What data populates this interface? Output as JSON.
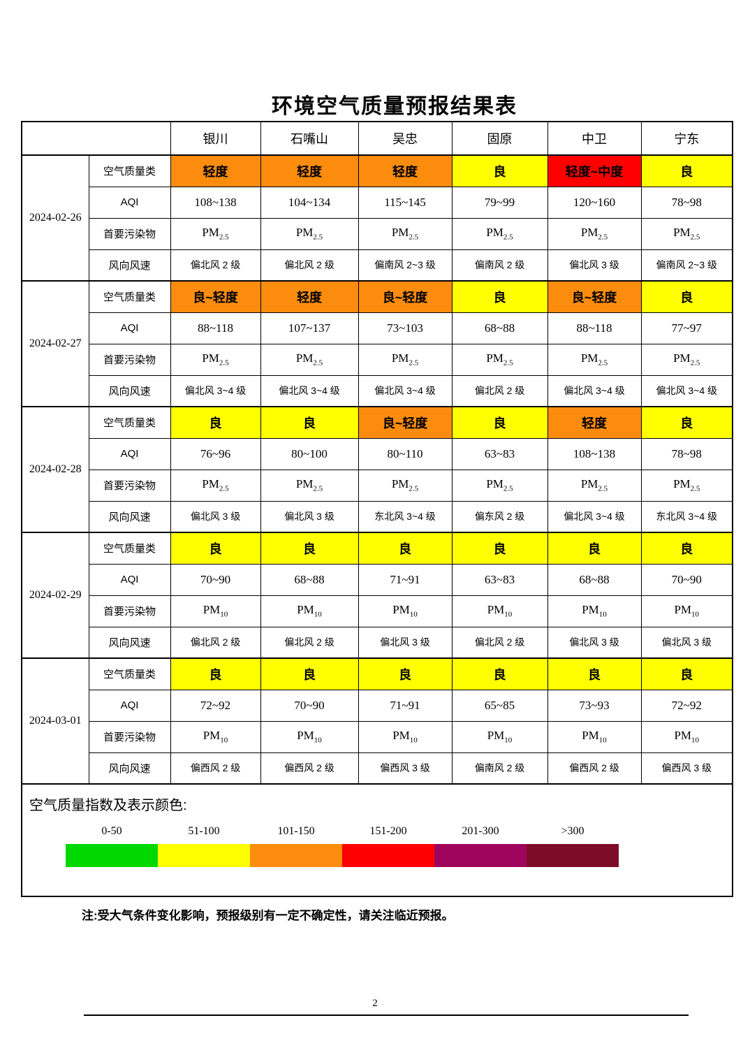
{
  "page": {
    "title": "环境空气质量预报结果表",
    "note": "注:受大气条件变化影响，预报级别有一定不确定性，请关注临近预报。",
    "page_number": "2"
  },
  "table": {
    "cities": [
      "银川",
      "石嘴山",
      "吴忠",
      "固原",
      "中卫",
      "宁东"
    ],
    "row_labels": {
      "quality": "空气质量类",
      "aqi": "AQI",
      "pollutant": "首要污染物",
      "wind": "风向风速"
    },
    "level_colors": {
      "orange": "#FB8C0E",
      "yellow": "#FFFF00",
      "red": "#FF0000"
    },
    "groups": [
      {
        "date": "2024-02-26",
        "quality": [
          {
            "text": "轻度",
            "color": "orange"
          },
          {
            "text": "轻度",
            "color": "orange"
          },
          {
            "text": "轻度",
            "color": "orange"
          },
          {
            "text": "良",
            "color": "yellow"
          },
          {
            "text": "轻度~中度",
            "color": "red"
          },
          {
            "text": "良",
            "color": "yellow"
          }
        ],
        "aqi": [
          "108~138",
          "104~134",
          "115~145",
          "79~99",
          "120~160",
          "78~98"
        ],
        "pollutant": [
          "PM2.5",
          "PM2.5",
          "PM2.5",
          "PM2.5",
          "PM2.5",
          "PM2.5"
        ],
        "wind": [
          "偏北风 2 级",
          "偏北风 2 级",
          "偏南风 2~3 级",
          "偏南风 2 级",
          "偏北风 3 级",
          "偏南风 2~3 级"
        ]
      },
      {
        "date": "2024-02-27",
        "quality": [
          {
            "text": "良~轻度",
            "color": "orange"
          },
          {
            "text": "轻度",
            "color": "orange"
          },
          {
            "text": "良~轻度",
            "color": "orange"
          },
          {
            "text": "良",
            "color": "yellow"
          },
          {
            "text": "良~轻度",
            "color": "orange"
          },
          {
            "text": "良",
            "color": "yellow"
          }
        ],
        "aqi": [
          "88~118",
          "107~137",
          "73~103",
          "68~88",
          "88~118",
          "77~97"
        ],
        "pollutant": [
          "PM2.5",
          "PM2.5",
          "PM2.5",
          "PM2.5",
          "PM2.5",
          "PM2.5"
        ],
        "wind": [
          "偏北风 3~4 级",
          "偏北风 3~4 级",
          "偏北风 3~4 级",
          "偏北风 2 级",
          "偏北风 3~4 级",
          "偏北风 3~4 级"
        ]
      },
      {
        "date": "2024-02-28",
        "quality": [
          {
            "text": "良",
            "color": "yellow"
          },
          {
            "text": "良",
            "color": "yellow"
          },
          {
            "text": "良~轻度",
            "color": "orange"
          },
          {
            "text": "良",
            "color": "yellow"
          },
          {
            "text": "轻度",
            "color": "orange"
          },
          {
            "text": "良",
            "color": "yellow"
          }
        ],
        "aqi": [
          "76~96",
          "80~100",
          "80~110",
          "63~83",
          "108~138",
          "78~98"
        ],
        "pollutant": [
          "PM2.5",
          "PM2.5",
          "PM2.5",
          "PM2.5",
          "PM2.5",
          "PM2.5"
        ],
        "wind": [
          "偏北风 3 级",
          "偏北风 3 级",
          "东北风 3~4 级",
          "偏东风 2 级",
          "偏北风 3~4 级",
          "东北风 3~4 级"
        ]
      },
      {
        "date": "2024-02-29",
        "quality": [
          {
            "text": "良",
            "color": "yellow"
          },
          {
            "text": "良",
            "color": "yellow"
          },
          {
            "text": "良",
            "color": "yellow"
          },
          {
            "text": "良",
            "color": "yellow"
          },
          {
            "text": "良",
            "color": "yellow"
          },
          {
            "text": "良",
            "color": "yellow"
          }
        ],
        "aqi": [
          "70~90",
          "68~88",
          "71~91",
          "63~83",
          "68~88",
          "70~90"
        ],
        "pollutant": [
          "PM10",
          "PM10",
          "PM10",
          "PM10",
          "PM10",
          "PM10"
        ],
        "wind": [
          "偏北风 2 级",
          "偏北风 2 级",
          "偏北风 3 级",
          "偏北风 2 级",
          "偏北风 3 级",
          "偏北风 3 级"
        ]
      },
      {
        "date": "2024-03-01",
        "quality": [
          {
            "text": "良",
            "color": "yellow"
          },
          {
            "text": "良",
            "color": "yellow"
          },
          {
            "text": "良",
            "color": "yellow"
          },
          {
            "text": "良",
            "color": "yellow"
          },
          {
            "text": "良",
            "color": "yellow"
          },
          {
            "text": "良",
            "color": "yellow"
          }
        ],
        "aqi": [
          "72~92",
          "70~90",
          "71~91",
          "65~85",
          "73~93",
          "72~92"
        ],
        "pollutant": [
          "PM10",
          "PM10",
          "PM10",
          "PM10",
          "PM10",
          "PM10"
        ],
        "wind": [
          "偏西风 2 级",
          "偏西风 2 级",
          "偏西风 3 级",
          "偏南风 2 级",
          "偏西风 2 级",
          "偏西风 3 级"
        ]
      }
    ]
  },
  "legend": {
    "title": "空气质量指数及表示颜色:",
    "items": [
      {
        "range": "0-50",
        "color": "#00D800"
      },
      {
        "range": "51-100",
        "color": "#FFFF00"
      },
      {
        "range": "101-150",
        "color": "#FB8C0E"
      },
      {
        "range": "151-200",
        "color": "#FF0000"
      },
      {
        "range": "201-300",
        "color": "#9F055C"
      },
      {
        "range": ">300",
        "color": "#7D0C28"
      }
    ]
  }
}
